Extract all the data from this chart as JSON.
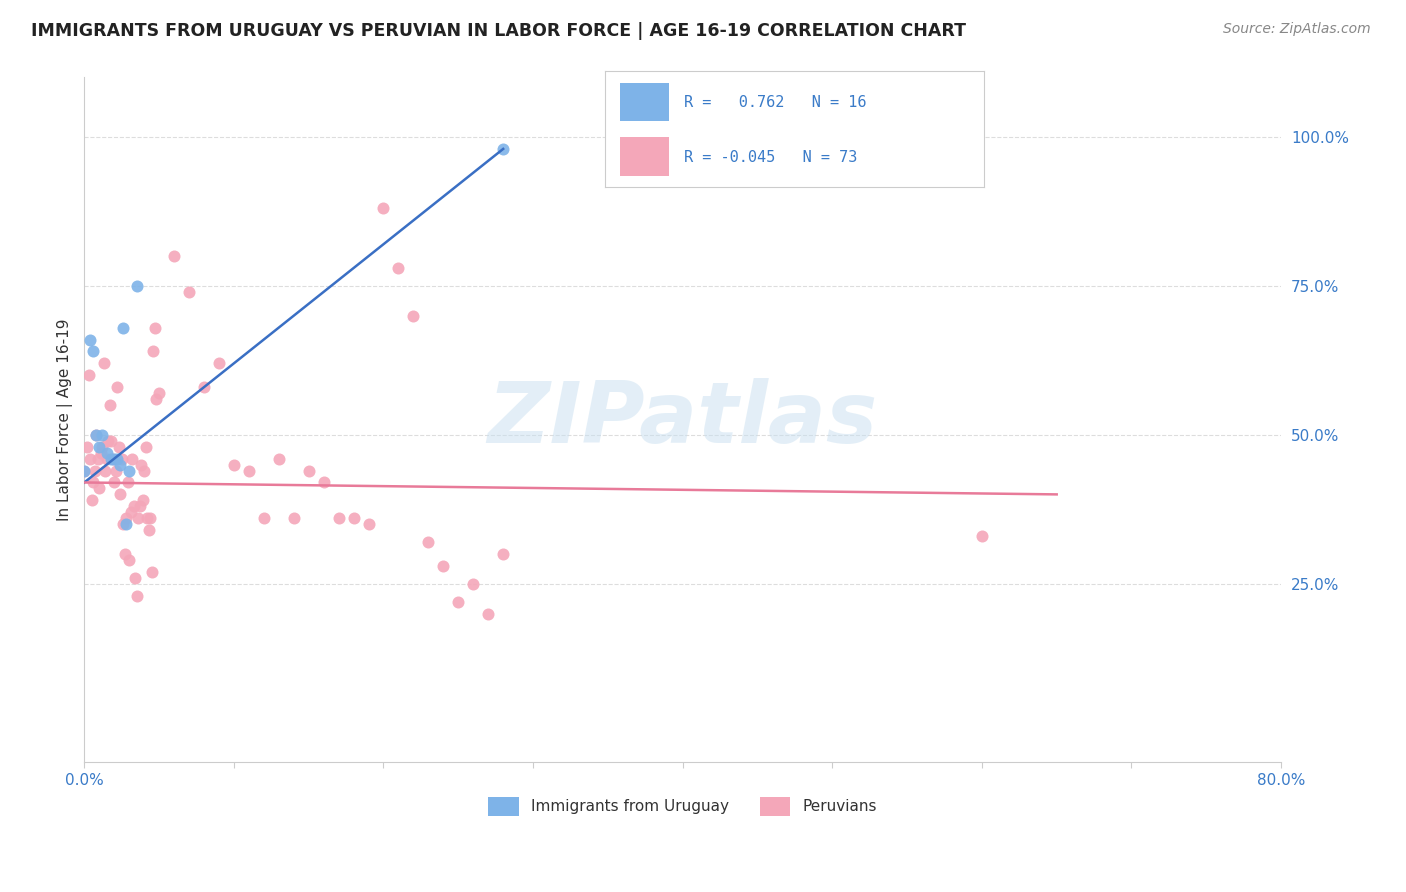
{
  "title": "IMMIGRANTS FROM URUGUAY VS PERUVIAN IN LABOR FORCE | AGE 16-19 CORRELATION CHART",
  "source": "Source: ZipAtlas.com",
  "ylabel": "In Labor Force | Age 16-19",
  "xlim": [
    0.0,
    0.8
  ],
  "ylim": [
    -0.05,
    1.1
  ],
  "watermark": "ZIPatlas",
  "uruguay_color": "#7eb3e8",
  "peru_color": "#f4a7b9",
  "uruguay_line_color": "#3a6fc4",
  "peru_line_color": "#e87a99",
  "uruguay_x": [
    0.0,
    0.004,
    0.006,
    0.008,
    0.01,
    0.012,
    0.015,
    0.018,
    0.02,
    0.022,
    0.024,
    0.026,
    0.028,
    0.03,
    0.035,
    0.28
  ],
  "uruguay_y": [
    0.44,
    0.66,
    0.64,
    0.5,
    0.48,
    0.5,
    0.47,
    0.46,
    0.46,
    0.46,
    0.45,
    0.68,
    0.35,
    0.44,
    0.75,
    0.98
  ],
  "peru_x": [
    0.0,
    0.002,
    0.003,
    0.004,
    0.005,
    0.006,
    0.007,
    0.008,
    0.009,
    0.01,
    0.011,
    0.012,
    0.013,
    0.014,
    0.015,
    0.016,
    0.017,
    0.018,
    0.019,
    0.02,
    0.021,
    0.022,
    0.023,
    0.024,
    0.025,
    0.026,
    0.027,
    0.028,
    0.029,
    0.03,
    0.031,
    0.032,
    0.033,
    0.034,
    0.035,
    0.036,
    0.037,
    0.038,
    0.039,
    0.04,
    0.041,
    0.042,
    0.043,
    0.044,
    0.045,
    0.046,
    0.047,
    0.048,
    0.05,
    0.06,
    0.07,
    0.08,
    0.09,
    0.1,
    0.11,
    0.12,
    0.13,
    0.14,
    0.15,
    0.16,
    0.17,
    0.18,
    0.19,
    0.2,
    0.21,
    0.22,
    0.23,
    0.24,
    0.25,
    0.26,
    0.27,
    0.28,
    0.6
  ],
  "peru_y": [
    0.44,
    0.48,
    0.6,
    0.46,
    0.39,
    0.42,
    0.44,
    0.5,
    0.46,
    0.41,
    0.47,
    0.48,
    0.62,
    0.44,
    0.46,
    0.49,
    0.55,
    0.49,
    0.46,
    0.42,
    0.44,
    0.58,
    0.48,
    0.4,
    0.46,
    0.35,
    0.3,
    0.36,
    0.42,
    0.29,
    0.37,
    0.46,
    0.38,
    0.26,
    0.23,
    0.36,
    0.38,
    0.45,
    0.39,
    0.44,
    0.48,
    0.36,
    0.34,
    0.36,
    0.27,
    0.64,
    0.68,
    0.56,
    0.57,
    0.8,
    0.74,
    0.58,
    0.62,
    0.45,
    0.44,
    0.36,
    0.46,
    0.36,
    0.44,
    0.42,
    0.36,
    0.36,
    0.35,
    0.88,
    0.78,
    0.7,
    0.32,
    0.28,
    0.22,
    0.25,
    0.2,
    0.3,
    0.33
  ],
  "uru_line_x": [
    0.0,
    0.28
  ],
  "uru_line_y": [
    0.42,
    0.98
  ],
  "peru_line_x": [
    0.0,
    0.65
  ],
  "peru_line_y": [
    0.42,
    0.4
  ],
  "background_color": "#ffffff"
}
